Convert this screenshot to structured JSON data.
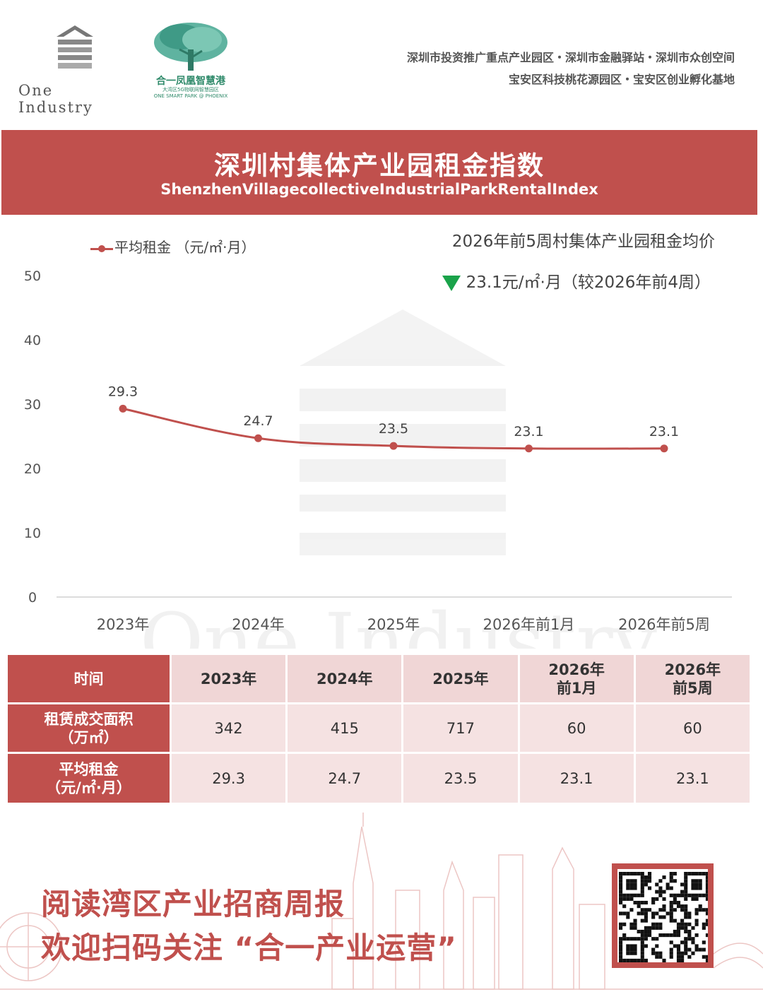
{
  "header": {
    "logo_one_industry": "One Industry",
    "logo_park_name": "合一凤凰智慧港",
    "logo_park_sub1": "大湾区5G物联网智慧园区",
    "logo_park_sub2": "ONE SMART PARK @ PHOENIX",
    "tagline_line1": "深圳市投资推广重点产业园区・深圳市金融驿站・深圳市众创空间",
    "tagline_line2": "宝安区科技桃花源园区・宝安区创业孵化基地"
  },
  "banner": {
    "title": "深圳村集体产业园租金指数",
    "subtitle": "ShenzhenVillagecollectiveIndustrialParkRentalIndex"
  },
  "summary": {
    "title": "2026年前5周村集体产业园租金均价",
    "value": "23.1元/㎡·月（较2026年前4周）",
    "trend_icon": "down-triangle-icon",
    "trend_color": "#1aa34a"
  },
  "chart_data": {
    "type": "line",
    "categories": [
      "2023年",
      "2024年",
      "2025年",
      "2026年前1月",
      "2026年前5周"
    ],
    "series": [
      {
        "name": "平均租金 （元/㎡·月）",
        "values": [
          29.3,
          24.7,
          23.5,
          23.1,
          23.1
        ],
        "color": "#c0504d"
      }
    ],
    "data_labels": [
      "29.3",
      "24.7",
      "23.5",
      "23.1",
      "23.1"
    ],
    "ylim": [
      0,
      50
    ],
    "yticks": [
      0,
      10,
      20,
      30,
      40,
      50
    ],
    "grid": false,
    "legend_position": "top-left",
    "smooth": true
  },
  "table": {
    "corner": "时间",
    "columns": [
      "2023年",
      "2024年",
      "2025年",
      "2026年\n前1月",
      "2026年\n前5周"
    ],
    "rows": [
      {
        "label": "租赁成交面积\n（万㎡）",
        "values": [
          "342",
          "415",
          "717",
          "60",
          "60"
        ]
      },
      {
        "label": "平均租金\n（元/㎡·月）",
        "values": [
          "29.3",
          "24.7",
          "23.5",
          "23.1",
          "23.1"
        ]
      }
    ]
  },
  "footer": {
    "cta_line1": "阅读湾区产业招商周报",
    "cta_line2": "欢迎扫码关注 “合一产业运营”",
    "qr_icon": "qr-code-icon"
  },
  "colors": {
    "accent": "#c0504d",
    "table_header_bg": "#f0d6d6",
    "table_cell_bg": "#f5e2e2",
    "park_green": "#2f8a6a"
  }
}
